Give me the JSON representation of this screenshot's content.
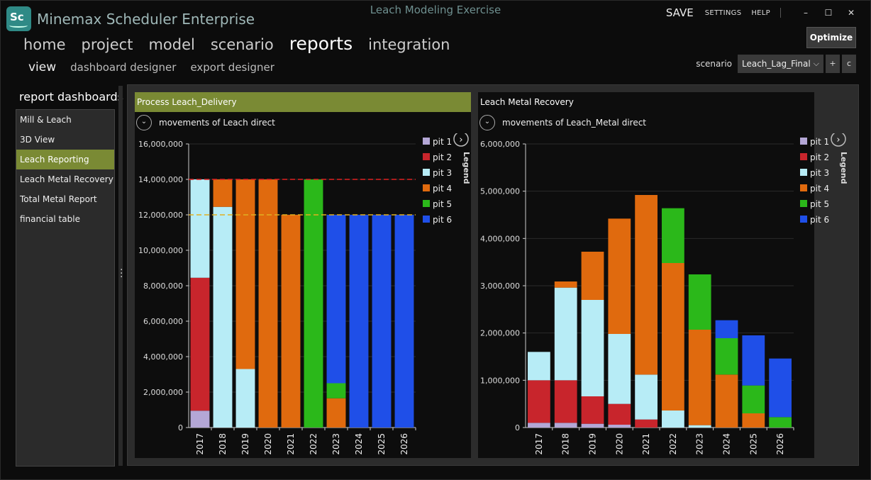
{
  "app": {
    "logo_text": "Sc",
    "title": "Minemax Scheduler Enterprise",
    "window_title": "Leach Modeling Exercise",
    "save": "SAVE",
    "settings": "SETTINGS",
    "help": "HELP",
    "minimize_glyph": "–",
    "maximize_glyph": "☐",
    "close_glyph": "✕"
  },
  "nav": {
    "main": [
      "home",
      "project",
      "model",
      "scenario",
      "reports",
      "integration"
    ],
    "active_main": "reports",
    "sub": [
      "view",
      "dashboard designer",
      "export designer"
    ],
    "active_sub": "view"
  },
  "toolbar": {
    "optimize": "Optimize",
    "scenario_label": "scenario",
    "scenario_value": "Leach_Lag_Final",
    "plus": "+",
    "c": "c",
    "chevron": "⌵"
  },
  "sidebar": {
    "title": "report dashboards",
    "items": [
      {
        "label": "Mill & Leach",
        "active": false
      },
      {
        "label": "3D View",
        "active": false
      },
      {
        "label": "Leach Reporting",
        "active": true
      },
      {
        "label": "Leach Metal Recovery",
        "active": false
      },
      {
        "label": "Total Metal Report",
        "active": false
      },
      {
        "label": "financial table",
        "active": false
      }
    ]
  },
  "panels": [
    {
      "header": "Process Leach_Delivery",
      "subtitle": "movements of Leach direct",
      "collapse_glyph": "⌄",
      "legend_toggle": "›",
      "legend_label": "Legend"
    },
    {
      "header": "Leach Metal Recovery",
      "subtitle": "movements of Leach_Metal direct",
      "collapse_glyph": "⌄",
      "legend_toggle": "›",
      "legend_label": "Legend"
    }
  ],
  "series_colors": {
    "pit 1": "#b4a7d6",
    "pit 2": "#c8252c",
    "pit 3": "#b7ecf6",
    "pit 4": "#e06a0e",
    "pit 5": "#2bb81a",
    "pit 6": "#1f4fe8"
  },
  "chart_data": [
    {
      "type": "bar",
      "stacked": true,
      "categories": [
        "2017",
        "2018",
        "2019",
        "2020",
        "2021",
        "2022",
        "2023",
        "2024",
        "2025",
        "2026"
      ],
      "ylim": [
        0,
        16000000
      ],
      "yticks": [
        0,
        2000000,
        4000000,
        6000000,
        8000000,
        10000000,
        12000000,
        14000000,
        16000000
      ],
      "ytick_labels": [
        "0",
        "2,000,000",
        "4,000,000",
        "6,000,000",
        "8,000,000",
        "10,000,000",
        "12,000,000",
        "14,000,000",
        "16,000,000"
      ],
      "reference_lines": [
        {
          "value": 14000000,
          "color": "#e02020"
        },
        {
          "value": 12000000,
          "color": "#e0b020"
        }
      ],
      "legend_position": "right",
      "series": [
        {
          "name": "pit 1",
          "values": [
            950000,
            0,
            0,
            0,
            0,
            0,
            0,
            0,
            0,
            0
          ]
        },
        {
          "name": "pit 2",
          "values": [
            7500000,
            0,
            0,
            0,
            0,
            0,
            0,
            0,
            0,
            0
          ]
        },
        {
          "name": "pit 3",
          "values": [
            5550000,
            12450000,
            3300000,
            0,
            0,
            0,
            0,
            0,
            0,
            0
          ]
        },
        {
          "name": "pit 4",
          "values": [
            0,
            1550000,
            10700000,
            14000000,
            12000000,
            0,
            1650000,
            0,
            0,
            0
          ]
        },
        {
          "name": "pit 5",
          "values": [
            0,
            0,
            0,
            0,
            0,
            14000000,
            850000,
            0,
            0,
            0
          ]
        },
        {
          "name": "pit 6",
          "values": [
            0,
            0,
            0,
            0,
            0,
            0,
            9500000,
            12000000,
            12000000,
            12000000
          ]
        }
      ]
    },
    {
      "type": "bar",
      "stacked": true,
      "categories": [
        "2017",
        "2018",
        "2019",
        "2020",
        "2021",
        "2022",
        "2023",
        "2024",
        "2025",
        "2026"
      ],
      "ylim": [
        0,
        6000000
      ],
      "yticks": [
        0,
        1000000,
        2000000,
        3000000,
        4000000,
        5000000,
        6000000
      ],
      "ytick_labels": [
        "0",
        "1,000,000",
        "2,000,000",
        "3,000,000",
        "4,000,000",
        "5,000,000",
        "6,000,000"
      ],
      "reference_lines": [],
      "legend_position": "right",
      "series": [
        {
          "name": "pit 1",
          "values": [
            100000,
            100000,
            80000,
            60000,
            0,
            0,
            0,
            0,
            0,
            0
          ]
        },
        {
          "name": "pit 2",
          "values": [
            900000,
            900000,
            580000,
            440000,
            170000,
            0,
            0,
            0,
            0,
            0
          ]
        },
        {
          "name": "pit 3",
          "values": [
            600000,
            1960000,
            2040000,
            1480000,
            950000,
            360000,
            50000,
            0,
            0,
            0
          ]
        },
        {
          "name": "pit 4",
          "values": [
            0,
            130000,
            1020000,
            2440000,
            3800000,
            3120000,
            2020000,
            1120000,
            300000,
            0
          ]
        },
        {
          "name": "pit 5",
          "values": [
            0,
            0,
            0,
            0,
            0,
            1160000,
            1170000,
            770000,
            590000,
            220000
          ]
        },
        {
          "name": "pit 6",
          "values": [
            0,
            0,
            0,
            0,
            0,
            0,
            0,
            380000,
            1060000,
            1240000
          ]
        }
      ]
    }
  ]
}
